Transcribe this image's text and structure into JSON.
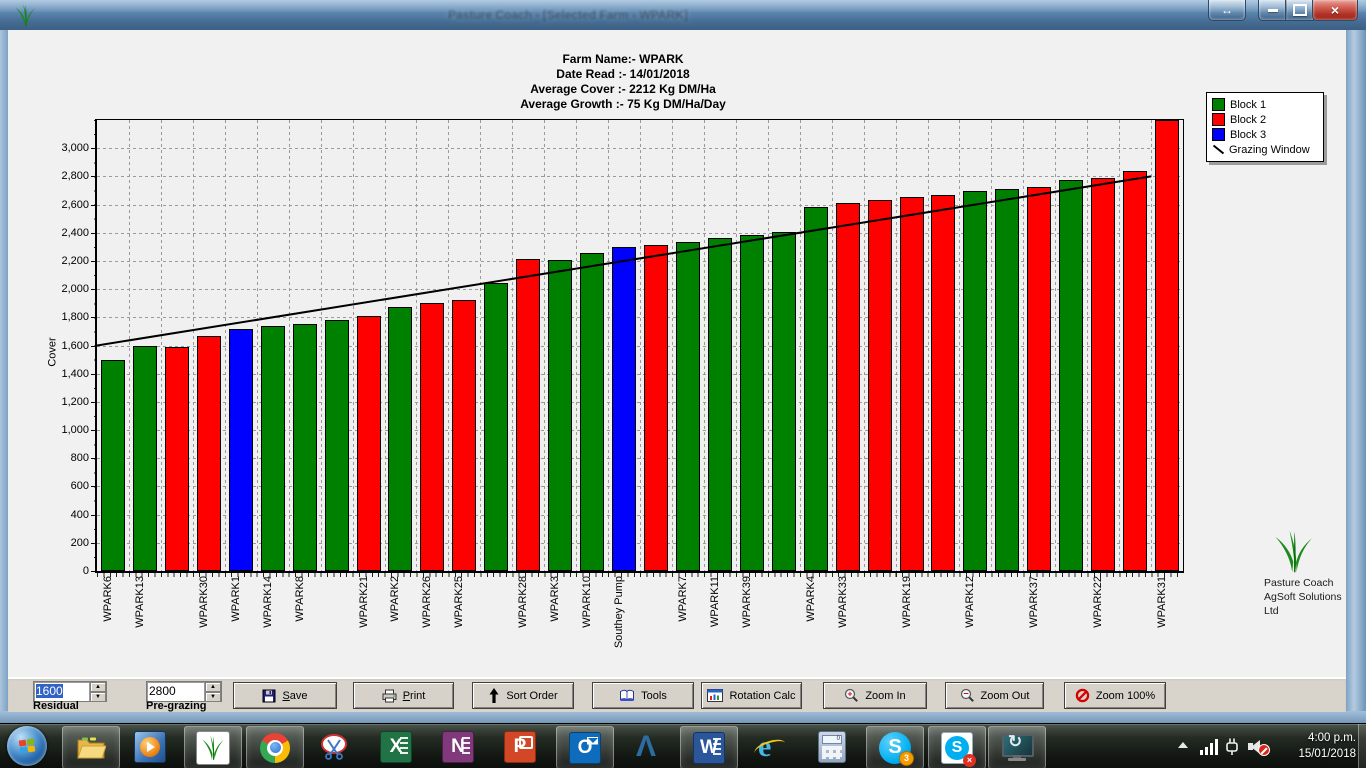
{
  "window": {
    "title": "Pasture Coach - [Selected Farm - WPARK]",
    "resize_glyph": "↔",
    "close_glyph": "×"
  },
  "header": {
    "lines": [
      "Farm Name:- WPARK",
      "Date Read :-  14/01/2018",
      "Average Cover :-  2212 Kg DM/Ha",
      "Average Growth :-  75 Kg DM/Ha/Day"
    ]
  },
  "legend": {
    "items": [
      {
        "label": "Block 1",
        "swatch": "box",
        "color": "#008000"
      },
      {
        "label": "Block 2",
        "swatch": "box",
        "color": "#FF0000"
      },
      {
        "label": "Block 3",
        "swatch": "box",
        "color": "#0000FF"
      },
      {
        "label": "Grazing Window",
        "swatch": "line",
        "color": "#000000"
      }
    ]
  },
  "chart_data": {
    "type": "bar",
    "ylabel": "Cover",
    "ylim": [
      0,
      3200
    ],
    "ytick_interval": 200,
    "ytick_label_max": 3000,
    "grid": true,
    "legend_position": "top-right",
    "block_colors": {
      "Block 1": "#008000",
      "Block 2": "#FF0000",
      "Block 3": "#0000FF"
    },
    "bars": [
      {
        "label": "WPARK6",
        "value": 1500,
        "block": "Block 1"
      },
      {
        "label": "WPARK13",
        "value": 1600,
        "block": "Block 1"
      },
      {
        "label": "",
        "value": 1590,
        "block": "Block 2"
      },
      {
        "label": "WPARK30",
        "value": 1670,
        "block": "Block 2"
      },
      {
        "label": "WPARK1",
        "value": 1720,
        "block": "Block 3"
      },
      {
        "label": "WPARK14",
        "value": 1740,
        "block": "Block 1"
      },
      {
        "label": "WPARK8",
        "value": 1750,
        "block": "Block 1"
      },
      {
        "label": "",
        "value": 1780,
        "block": "Block 1"
      },
      {
        "label": "WPARK21",
        "value": 1810,
        "block": "Block 2"
      },
      {
        "label": "WPARK2",
        "value": 1875,
        "block": "Block 1"
      },
      {
        "label": "WPARK26",
        "value": 1900,
        "block": "Block 2"
      },
      {
        "label": "WPARK25",
        "value": 1920,
        "block": "Block 2"
      },
      {
        "label": "",
        "value": 2045,
        "block": "Block 1"
      },
      {
        "label": "WPARK28",
        "value": 2215,
        "block": "Block 2"
      },
      {
        "label": "WPARK3",
        "value": 2210,
        "block": "Block 1"
      },
      {
        "label": "WPARK10",
        "value": 2255,
        "block": "Block 1"
      },
      {
        "label": "Southey Pump",
        "value": 2300,
        "block": "Block 3"
      },
      {
        "label": "",
        "value": 2310,
        "block": "Block 2"
      },
      {
        "label": "WPARK7",
        "value": 2335,
        "block": "Block 1"
      },
      {
        "label": "WPARK11",
        "value": 2360,
        "block": "Block 1"
      },
      {
        "label": "WPARK39",
        "value": 2385,
        "block": "Block 1"
      },
      {
        "label": "",
        "value": 2405,
        "block": "Block 1"
      },
      {
        "label": "WPARK4",
        "value": 2580,
        "block": "Block 1"
      },
      {
        "label": "WPARK33",
        "value": 2610,
        "block": "Block 2"
      },
      {
        "label": "",
        "value": 2630,
        "block": "Block 2"
      },
      {
        "label": "WPARK19",
        "value": 2655,
        "block": "Block 2"
      },
      {
        "label": "",
        "value": 2665,
        "block": "Block 2"
      },
      {
        "label": "WPARK12",
        "value": 2695,
        "block": "Block 1"
      },
      {
        "label": "",
        "value": 2710,
        "block": "Block 1"
      },
      {
        "label": "WPARK37",
        "value": 2725,
        "block": "Block 2"
      },
      {
        "label": "",
        "value": 2775,
        "block": "Block 1"
      },
      {
        "label": "WPARK22",
        "value": 2790,
        "block": "Block 2"
      },
      {
        "label": "",
        "value": 2840,
        "block": "Block 2"
      },
      {
        "label": "WPARK31",
        "value": 3200,
        "block": "Block 2",
        "clipped_at_top": true
      }
    ],
    "grazing_window": {
      "from_value": 1600,
      "to_value": 2800,
      "color": "#000000"
    }
  },
  "branding": {
    "line1": "Pasture Coach",
    "line2": "AgSoft Solutions Ltd"
  },
  "toolbar": {
    "residual": {
      "value": "1600",
      "label": "Residual"
    },
    "pregrazing": {
      "value": "2800",
      "label": "Pre-grazing"
    },
    "buttons": [
      {
        "label": "Save"
      },
      {
        "label": "Print"
      },
      {
        "label": "Sort Order"
      },
      {
        "label": "Tools"
      },
      {
        "label": "Rotation Calc"
      },
      {
        "label": "Zoom In"
      },
      {
        "label": "Zoom Out"
      },
      {
        "label": "Zoom 100%"
      }
    ]
  },
  "taskbar": {
    "icons": [
      "start-orb",
      "explorer",
      "media-player",
      "pasture-coach",
      "chrome",
      "snipping-tool",
      "excel",
      "onenote",
      "powerpoint",
      "outlook",
      "blue-caret-app",
      "word",
      "internet-explorer",
      "calculator",
      "skype",
      "skype-offline",
      "monitor-sync"
    ],
    "skype_badge": "3",
    "clock": {
      "time": "4:00 p.m.",
      "date": "15/01/2018"
    }
  }
}
